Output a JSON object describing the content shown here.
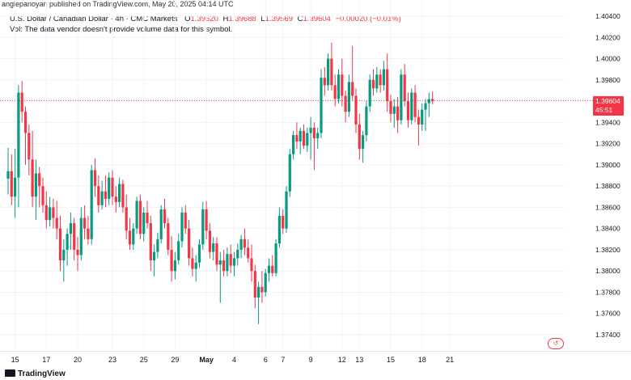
{
  "publisher": "anglepanoyan published on TradingView.com, May 20, 2025 04:14 UTC",
  "legend": {
    "symbol": "U.S. Dollar / Canadian Dollar · 4h · CMC Markets",
    "open_label": "O",
    "open": "1.39620",
    "high_label": "H",
    "high": "1.39688",
    "low_label": "L",
    "low": "1.39569",
    "close_label": "C",
    "close": "1.39604",
    "change": "−0.00020 (−0.01%)",
    "volume_note": "Vol: The data vendor doesn't provide volume data for this symbol."
  },
  "price_box": {
    "price": "1.39604",
    "countdown": "45:51"
  },
  "footer": {
    "brand": "TradingView"
  },
  "colors": {
    "up": "#089981",
    "down": "#f23645",
    "grid": "#f0f3fa",
    "text": "#131722"
  },
  "icons": {
    "brand": "tradingview-logo-icon",
    "replay": "replay-icon"
  },
  "chart_data": {
    "type": "candlestick",
    "ylim": [
      1.373,
      1.404
    ],
    "y_ticks": [
      "1.40400",
      "1.40200",
      "1.40000",
      "1.39800",
      "1.39600",
      "1.39400",
      "1.39200",
      "1.39000",
      "1.38800",
      "1.38600",
      "1.38400",
      "1.38200",
      "1.38000",
      "1.37800",
      "1.37600",
      "1.37400"
    ],
    "x_ticks": [
      {
        "label": "15",
        "index": 2
      },
      {
        "label": "17",
        "index": 11
      },
      {
        "label": "20",
        "index": 20
      },
      {
        "label": "23",
        "index": 30
      },
      {
        "label": "25",
        "index": 39
      },
      {
        "label": "29",
        "index": 48
      },
      {
        "label": "May",
        "index": 57,
        "bold": true
      },
      {
        "label": "4",
        "index": 65
      },
      {
        "label": "6",
        "index": 74
      },
      {
        "label": "7",
        "index": 79
      },
      {
        "label": "9",
        "index": 87
      },
      {
        "label": "12",
        "index": 96
      },
      {
        "label": "13",
        "index": 101
      },
      {
        "label": "15",
        "index": 110
      },
      {
        "label": "18",
        "index": 119
      },
      {
        "label": "21",
        "index": 127
      }
    ],
    "last_price": 1.39604,
    "candles": [
      [
        1.3887,
        1.3916,
        1.3872,
        1.3894
      ],
      [
        1.3894,
        1.391,
        1.3862,
        1.387
      ],
      [
        1.387,
        1.3915,
        1.385,
        1.3888
      ],
      [
        1.3888,
        1.3975,
        1.386,
        1.3968
      ],
      [
        1.3968,
        1.3979,
        1.394,
        1.395
      ],
      [
        1.395,
        1.3955,
        1.39,
        1.393
      ],
      [
        1.393,
        1.3938,
        1.389,
        1.3905
      ],
      [
        1.3905,
        1.3932,
        1.386,
        1.387
      ],
      [
        1.387,
        1.3905,
        1.3848,
        1.3892
      ],
      [
        1.3892,
        1.3898,
        1.386,
        1.388
      ],
      [
        1.388,
        1.3888,
        1.3855,
        1.3862
      ],
      [
        1.3862,
        1.3875,
        1.384,
        1.3848
      ],
      [
        1.3848,
        1.387,
        1.3842,
        1.386
      ],
      [
        1.386,
        1.3868,
        1.384,
        1.385
      ],
      [
        1.385,
        1.3866,
        1.383,
        1.384
      ],
      [
        1.384,
        1.3852,
        1.38,
        1.381
      ],
      [
        1.381,
        1.383,
        1.379,
        1.382
      ],
      [
        1.382,
        1.384,
        1.3805,
        1.3835
      ],
      [
        1.3835,
        1.3855,
        1.382,
        1.3845
      ],
      [
        1.3845,
        1.385,
        1.381,
        1.382
      ],
      [
        1.382,
        1.3832,
        1.38,
        1.3815
      ],
      [
        1.3815,
        1.386,
        1.381,
        1.385
      ],
      [
        1.385,
        1.3862,
        1.383,
        1.384
      ],
      [
        1.384,
        1.3852,
        1.3825,
        1.383
      ],
      [
        1.383,
        1.39,
        1.3825,
        1.3895
      ],
      [
        1.3895,
        1.3906,
        1.387,
        1.388
      ],
      [
        1.388,
        1.389,
        1.3855,
        1.3862
      ],
      [
        1.3862,
        1.3885,
        1.3858,
        1.3875
      ],
      [
        1.3875,
        1.389,
        1.386,
        1.3868
      ],
      [
        1.3868,
        1.3893,
        1.3862,
        1.3888
      ],
      [
        1.3888,
        1.3895,
        1.3862,
        1.387
      ],
      [
        1.387,
        1.388,
        1.3855,
        1.3865
      ],
      [
        1.3865,
        1.3888,
        1.386,
        1.3882
      ],
      [
        1.3882,
        1.3886,
        1.3855,
        1.386
      ],
      [
        1.386,
        1.3872,
        1.383,
        1.3838
      ],
      [
        1.3838,
        1.385,
        1.382,
        1.3825
      ],
      [
        1.3825,
        1.3845,
        1.382,
        1.384
      ],
      [
        1.384,
        1.387,
        1.3835,
        1.3866
      ],
      [
        1.3866,
        1.3872,
        1.383,
        1.3835
      ],
      [
        1.3835,
        1.386,
        1.3828,
        1.3855
      ],
      [
        1.3855,
        1.3866,
        1.384,
        1.3845
      ],
      [
        1.3845,
        1.3852,
        1.38,
        1.381
      ],
      [
        1.381,
        1.3825,
        1.3795,
        1.3818
      ],
      [
        1.3818,
        1.3836,
        1.3812,
        1.383
      ],
      [
        1.383,
        1.3862,
        1.3826,
        1.3858
      ],
      [
        1.3858,
        1.3868,
        1.384,
        1.3845
      ],
      [
        1.3845,
        1.385,
        1.3815,
        1.382
      ],
      [
        1.382,
        1.3833,
        1.379,
        1.38
      ],
      [
        1.38,
        1.3818,
        1.3792,
        1.381
      ],
      [
        1.381,
        1.3835,
        1.3806,
        1.3828
      ],
      [
        1.3828,
        1.386,
        1.3822,
        1.3855
      ],
      [
        1.3855,
        1.3862,
        1.3835,
        1.384
      ],
      [
        1.384,
        1.3848,
        1.3805,
        1.3812
      ],
      [
        1.3812,
        1.3822,
        1.3795,
        1.3802
      ],
      [
        1.3802,
        1.3815,
        1.379,
        1.3808
      ],
      [
        1.3808,
        1.383,
        1.3803,
        1.3825
      ],
      [
        1.3825,
        1.3865,
        1.382,
        1.3858
      ],
      [
        1.3858,
        1.3866,
        1.383,
        1.3838
      ],
      [
        1.3838,
        1.3845,
        1.3812,
        1.3818
      ],
      [
        1.3818,
        1.3832,
        1.381,
        1.3826
      ],
      [
        1.3826,
        1.3832,
        1.38,
        1.3806
      ],
      [
        1.3806,
        1.3818,
        1.377,
        1.381
      ],
      [
        1.381,
        1.382,
        1.3795,
        1.38
      ],
      [
        1.38,
        1.3822,
        1.3795,
        1.3816
      ],
      [
        1.3816,
        1.3825,
        1.3798,
        1.3805
      ],
      [
        1.3805,
        1.3818,
        1.3795,
        1.3812
      ],
      [
        1.3812,
        1.3826,
        1.3805,
        1.382
      ],
      [
        1.382,
        1.3834,
        1.3812,
        1.383
      ],
      [
        1.383,
        1.384,
        1.3815,
        1.3822
      ],
      [
        1.3822,
        1.383,
        1.3808,
        1.3812
      ],
      [
        1.3812,
        1.3825,
        1.379,
        1.38
      ],
      [
        1.38,
        1.3806,
        1.3765,
        1.3775
      ],
      [
        1.3775,
        1.379,
        1.375,
        1.3785
      ],
      [
        1.3785,
        1.38,
        1.377,
        1.378
      ],
      [
        1.378,
        1.3802,
        1.3776,
        1.3798
      ],
      [
        1.3798,
        1.3812,
        1.379,
        1.3805
      ],
      [
        1.3805,
        1.3815,
        1.3795,
        1.3798
      ],
      [
        1.3798,
        1.383,
        1.3795,
        1.3826
      ],
      [
        1.3826,
        1.386,
        1.3822,
        1.3852
      ],
      [
        1.3852,
        1.3858,
        1.3835,
        1.384
      ],
      [
        1.384,
        1.388,
        1.3836,
        1.3875
      ],
      [
        1.3875,
        1.3915,
        1.387,
        1.391
      ],
      [
        1.391,
        1.3932,
        1.3905,
        1.3928
      ],
      [
        1.3928,
        1.394,
        1.3915,
        1.3922
      ],
      [
        1.3922,
        1.3935,
        1.391,
        1.3932
      ],
      [
        1.3932,
        1.3938,
        1.3915,
        1.3918
      ],
      [
        1.3918,
        1.3935,
        1.3912,
        1.393
      ],
      [
        1.393,
        1.3945,
        1.3905,
        1.3935
      ],
      [
        1.3935,
        1.394,
        1.3895,
        1.3925
      ],
      [
        1.3925,
        1.3935,
        1.3915,
        1.393
      ],
      [
        1.393,
        1.399,
        1.3925,
        1.3982
      ],
      [
        1.3982,
        1.3992,
        1.3965,
        1.3975
      ],
      [
        1.3975,
        1.4005,
        1.397,
        1.4
      ],
      [
        1.4,
        1.4015,
        1.397,
        1.3975
      ],
      [
        1.3975,
        1.3985,
        1.3955,
        1.3962
      ],
      [
        1.3962,
        1.399,
        1.3958,
        1.3985
      ],
      [
        1.3985,
        1.4,
        1.3955,
        1.3965
      ],
      [
        1.3965,
        1.397,
        1.394,
        1.395
      ],
      [
        1.395,
        1.3985,
        1.3945,
        1.3978
      ],
      [
        1.3978,
        1.4012,
        1.396,
        1.3965
      ],
      [
        1.3965,
        1.3972,
        1.393,
        1.3938
      ],
      [
        1.3938,
        1.3948,
        1.3905,
        1.3915
      ],
      [
        1.3915,
        1.3932,
        1.3902,
        1.3928
      ],
      [
        1.3928,
        1.396,
        1.3922,
        1.3955
      ],
      [
        1.3955,
        1.3985,
        1.395,
        1.398
      ],
      [
        1.398,
        1.399,
        1.3965,
        1.3972
      ],
      [
        1.3972,
        1.3992,
        1.3968,
        1.3985
      ],
      [
        1.3985,
        1.399,
        1.3968,
        1.3975
      ],
      [
        1.3975,
        1.3998,
        1.397,
        1.399
      ],
      [
        1.399,
        1.4005,
        1.395,
        1.396
      ],
      [
        1.396,
        1.3966,
        1.394,
        1.3948
      ],
      [
        1.3948,
        1.3962,
        1.3935,
        1.3955
      ],
      [
        1.3955,
        1.3964,
        1.393,
        1.3942
      ],
      [
        1.3942,
        1.399,
        1.3938,
        1.3985
      ],
      [
        1.3985,
        1.3995,
        1.3955,
        1.396
      ],
      [
        1.396,
        1.3968,
        1.3935,
        1.3942
      ],
      [
        1.3942,
        1.3972,
        1.3938,
        1.3968
      ],
      [
        1.3968,
        1.3975,
        1.394,
        1.3945
      ],
      [
        1.3945,
        1.3952,
        1.3918,
        1.3938
      ],
      [
        1.3938,
        1.3958,
        1.3932,
        1.3952
      ],
      [
        1.3952,
        1.3962,
        1.3932,
        1.3958
      ],
      [
        1.3958,
        1.3968,
        1.3945,
        1.3962
      ],
      [
        1.3962,
        1.3969,
        1.3957,
        1.396
      ]
    ]
  }
}
